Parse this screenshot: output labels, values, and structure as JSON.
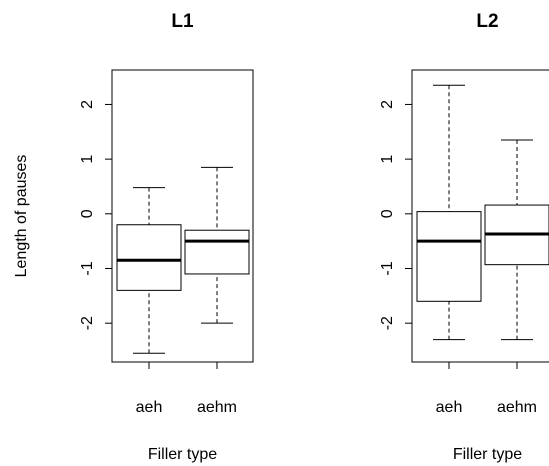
{
  "chart_data": [
    {
      "type": "box",
      "title": "L1",
      "y_label": "Length of pauses",
      "x_label": "Filler type",
      "categories": [
        "aeh",
        "aehm"
      ],
      "min": [
        -2.55,
        -2.0
      ],
      "q1": [
        -1.4,
        -1.1
      ],
      "median": [
        -0.85,
        -0.5
      ],
      "q3": [
        -0.2,
        -0.3
      ],
      "max": [
        0.48,
        0.85
      ],
      "ylim": [
        -2.71,
        2.63
      ],
      "yticks": [
        -2,
        -1,
        0,
        1,
        2
      ]
    },
    {
      "type": "box",
      "title": "L2",
      "x_label": "Filler type",
      "categories": [
        "aeh",
        "aehm"
      ],
      "min": [
        -2.3,
        -2.3
      ],
      "q1": [
        -1.6,
        -0.93
      ],
      "median": [
        -0.5,
        -0.37
      ],
      "q3": [
        0.04,
        0.16
      ],
      "max": [
        2.35,
        1.35
      ],
      "ylim": [
        -2.71,
        2.63
      ],
      "yticks": [
        -2,
        -1,
        0,
        1,
        2
      ]
    }
  ]
}
